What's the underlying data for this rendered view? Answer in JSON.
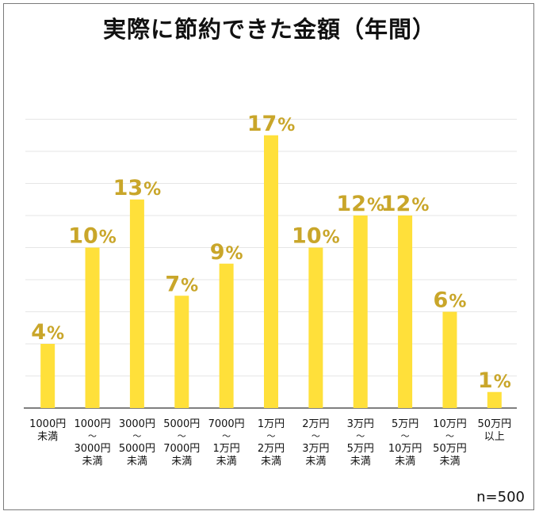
{
  "chart_data": {
    "type": "bar",
    "title": "実際に節約できた金額（年間）",
    "categories": [
      [
        "1000円",
        "未満"
      ],
      [
        "1000円",
        "～",
        "3000円",
        "未満"
      ],
      [
        "3000円",
        "～",
        "5000円",
        "未満"
      ],
      [
        "5000円",
        "～",
        "7000円",
        "未満"
      ],
      [
        "7000円",
        "～",
        "1万円",
        "未満"
      ],
      [
        "1万円",
        "～",
        "2万円",
        "未満"
      ],
      [
        "2万円",
        "～",
        "3万円",
        "未満"
      ],
      [
        "3万円",
        "～",
        "5万円",
        "未満"
      ],
      [
        "5万円",
        "～",
        "10万円",
        "未満"
      ],
      [
        "10万円",
        "～",
        "50万円",
        "未満"
      ],
      [
        "50万円",
        "以上"
      ]
    ],
    "values": [
      4,
      10,
      13,
      7,
      9,
      17,
      10,
      12,
      12,
      6,
      1
    ],
    "value_suffix": "%",
    "ylim": [
      0,
      20
    ],
    "grid": true,
    "note": "n=500",
    "colors": {
      "bar": "#FFE03A",
      "label": "#C9A62A",
      "grid": "#e6e6e6",
      "axis": "#555555"
    }
  }
}
